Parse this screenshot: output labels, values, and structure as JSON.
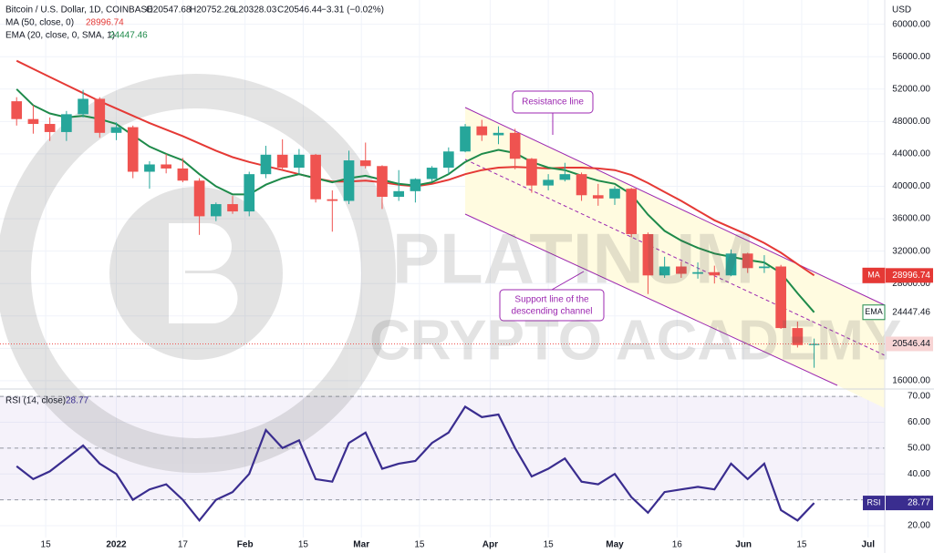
{
  "watermark": [
    "PLATINUM",
    "CRYPTO ACADEMY"
  ],
  "chart_data": [
    {
      "type": "candlestick",
      "title": "Bitcoin / U.S. Dollar, 1D, COINBASE",
      "ohlc_labels": [
        "O20547.68",
        "H20752.26",
        "L20328.03",
        "C20546.44"
      ],
      "change": "−3.31 (−0.02%)",
      "y_unit": "USD",
      "x": [
        "2021-12-08",
        "2021-12-12",
        "2021-12-16",
        "2021-12-20",
        "2021-12-24",
        "2021-12-28",
        "2022-01-01",
        "2022-01-05",
        "2022-01-09",
        "2022-01-13",
        "2022-01-17",
        "2022-01-21",
        "2022-01-25",
        "2022-01-29",
        "2022-02-02",
        "2022-02-06",
        "2022-02-10",
        "2022-02-14",
        "2022-02-18",
        "2022-02-22",
        "2022-02-26",
        "2022-03-02",
        "2022-03-06",
        "2022-03-10",
        "2022-03-14",
        "2022-03-18",
        "2022-03-22",
        "2022-03-26",
        "2022-03-30",
        "2022-04-03",
        "2022-04-07",
        "2022-04-11",
        "2022-04-15",
        "2022-04-19",
        "2022-04-23",
        "2022-04-27",
        "2022-05-01",
        "2022-05-05",
        "2022-05-09",
        "2022-05-13",
        "2022-05-17",
        "2022-05-21",
        "2022-05-25",
        "2022-05-29",
        "2022-06-02",
        "2022-06-06",
        "2022-06-10",
        "2022-06-14",
        "2022-06-18"
      ],
      "open": [
        50500,
        48300,
        47700,
        46700,
        48900,
        50800,
        46600,
        47300,
        41800,
        42700,
        42200,
        40700,
        36300,
        37800,
        36900,
        41500,
        43900,
        42300,
        43900,
        38400,
        38200,
        43200,
        42500,
        38700,
        39400,
        40900,
        42300,
        44300,
        47400,
        46300,
        46600,
        43400,
        40100,
        40800,
        41500,
        38900,
        38500,
        39700,
        34100,
        29000,
        30100,
        29200,
        29400,
        29000,
        31700,
        29900,
        30100,
        22500,
        20400
      ],
      "high": [
        51000,
        50000,
        48500,
        49300,
        51900,
        51000,
        47900,
        47500,
        43100,
        44000,
        43500,
        41000,
        38000,
        38800,
        41800,
        45000,
        45800,
        44600,
        44000,
        39500,
        44400,
        45400,
        42600,
        42000,
        41000,
        42500,
        44800,
        47700,
        48200,
        47400,
        47100,
        43500,
        41500,
        42900,
        41700,
        40300,
        40000,
        39800,
        34300,
        31300,
        30700,
        30600,
        30200,
        32200,
        31800,
        31500,
        30300,
        23300,
        21200
      ],
      "low": [
        47500,
        46500,
        45600,
        45600,
        48500,
        46000,
        45700,
        41000,
        39700,
        41600,
        40500,
        34000,
        35700,
        36600,
        36300,
        41000,
        42000,
        41500,
        38000,
        34400,
        37800,
        42200,
        37200,
        38200,
        38000,
        40600,
        41500,
        44200,
        45600,
        45200,
        42100,
        39200,
        39500,
        40600,
        38200,
        37600,
        37700,
        33700,
        26700,
        28700,
        28700,
        28600,
        28000,
        28900,
        29300,
        29300,
        22400,
        20100,
        17600
      ],
      "close": [
        48300,
        47700,
        46700,
        48900,
        50800,
        46600,
        47300,
        41800,
        42700,
        42200,
        40700,
        36300,
        37800,
        36900,
        41500,
        43900,
        42300,
        43900,
        38400,
        38200,
        43200,
        42500,
        38700,
        39400,
        40900,
        42300,
        44300,
        47400,
        46300,
        46600,
        43400,
        40100,
        40800,
        41500,
        38900,
        38500,
        39700,
        34100,
        29000,
        30100,
        29200,
        29400,
        29000,
        31700,
        29900,
        30100,
        22500,
        20400,
        20546.44
      ],
      "up_color": "#26a69a",
      "down_color": "#ef5350",
      "series": [
        {
          "name": "MA (50, close, 0)",
          "badge": "MA",
          "color": "#e53935",
          "values": [
            55500,
            54500,
            53500,
            52500,
            51500,
            50500,
            49600,
            48700,
            47800,
            47000,
            46200,
            45300,
            44400,
            43600,
            43000,
            42500,
            42000,
            41500,
            41000,
            40600,
            40600,
            40700,
            40500,
            40200,
            40000,
            40300,
            40800,
            41500,
            42000,
            42300,
            42400,
            42300,
            42200,
            42300,
            42300,
            42200,
            42000,
            41400,
            40400,
            39300,
            38200,
            37000,
            35800,
            34900,
            34000,
            33000,
            31800,
            30400,
            28996.74
          ]
        },
        {
          "name": "EMA (20, close, 0, SMA, 1)",
          "badge": "EMA",
          "color": "#1e8a4a",
          "values": [
            52000,
            50000,
            49000,
            48500,
            48700,
            48300,
            47700,
            46300,
            44900,
            44000,
            43200,
            41500,
            40000,
            39000,
            39000,
            40200,
            41000,
            41500,
            41000,
            40500,
            41000,
            41300,
            40800,
            40300,
            40100,
            40500,
            41500,
            43000,
            44000,
            44500,
            44100,
            43000,
            42300,
            42000,
            41300,
            40700,
            40300,
            39000,
            36500,
            34500,
            33300,
            32400,
            31700,
            31300,
            30900,
            30600,
            29300,
            26800,
            24447.46
          ]
        }
      ],
      "xlim": [
        "2021-12-04",
        "2022-07-05"
      ],
      "ylim": [
        15200,
        63000
      ],
      "yticks": [
        {
          "value": 16000,
          "label": "16000.00"
        },
        {
          "value": 20000,
          "label": "20000.00"
        },
        {
          "value": 24000,
          "label": "24000.00"
        },
        {
          "value": 28000,
          "label": "28000.00"
        },
        {
          "value": 32000,
          "label": "32000.00"
        },
        {
          "value": 36000,
          "label": "36000.00"
        },
        {
          "value": 40000,
          "label": "40000.00"
        },
        {
          "value": 44000,
          "label": "44000.00"
        },
        {
          "value": 48000,
          "label": "48000.00"
        },
        {
          "value": 52000,
          "label": "52000.00"
        },
        {
          "value": 56000,
          "label": "56000.00"
        },
        {
          "value": 60000,
          "label": "60000.00"
        }
      ],
      "grid": true,
      "annotations": [
        "Resistance line",
        "Support line of the",
        "descending channel"
      ]
    },
    {
      "type": "line",
      "title": "RSI (14, close)",
      "x": [
        "2021-12-08",
        "2021-12-12",
        "2021-12-16",
        "2021-12-20",
        "2021-12-24",
        "2021-12-28",
        "2022-01-01",
        "2022-01-05",
        "2022-01-09",
        "2022-01-13",
        "2022-01-17",
        "2022-01-21",
        "2022-01-25",
        "2022-01-29",
        "2022-02-02",
        "2022-02-06",
        "2022-02-10",
        "2022-02-14",
        "2022-02-18",
        "2022-02-22",
        "2022-02-26",
        "2022-03-02",
        "2022-03-06",
        "2022-03-10",
        "2022-03-14",
        "2022-03-18",
        "2022-03-22",
        "2022-03-26",
        "2022-03-30",
        "2022-04-03",
        "2022-04-07",
        "2022-04-11",
        "2022-04-15",
        "2022-04-19",
        "2022-04-23",
        "2022-04-27",
        "2022-05-01",
        "2022-05-05",
        "2022-05-09",
        "2022-05-13",
        "2022-05-17",
        "2022-05-21",
        "2022-05-25",
        "2022-05-29",
        "2022-06-02",
        "2022-06-06",
        "2022-06-10",
        "2022-06-14",
        "2022-06-18"
      ],
      "series": [
        {
          "name": "RSI",
          "color": "#3a2d8f",
          "values": [
            43,
            38,
            41,
            46,
            51,
            44,
            40,
            30,
            34,
            36,
            30,
            22,
            30,
            33,
            40,
            57,
            50,
            53,
            38,
            37,
            52,
            56,
            42,
            44,
            45,
            52,
            56,
            66,
            62,
            63,
            50,
            39,
            42,
            46,
            37,
            36,
            40,
            31,
            25,
            33,
            34,
            35,
            34,
            44,
            38,
            44,
            26,
            22,
            28.77
          ]
        }
      ],
      "xlim": [
        "2021-12-04",
        "2022-07-05"
      ],
      "ylim": [
        15.4,
        72.5
      ],
      "yticks": [
        {
          "value": 20,
          "label": "20.00"
        },
        {
          "value": 30,
          "label": "30.00"
        },
        {
          "value": 40,
          "label": "40.00"
        },
        {
          "value": 50,
          "label": "50.00"
        },
        {
          "value": 60,
          "label": "60.00"
        },
        {
          "value": 70,
          "label": "70.00"
        }
      ],
      "levels": [
        30,
        50,
        70
      ],
      "xticks": [
        {
          "value": "2021-12-15",
          "label": "15"
        },
        {
          "value": "2022-01-01",
          "label": "2022"
        },
        {
          "value": "2022-01-17",
          "label": "17"
        },
        {
          "value": "2022-02-01",
          "label": "Feb"
        },
        {
          "value": "2022-02-15",
          "label": "15"
        },
        {
          "value": "2022-03-01",
          "label": "Mar"
        },
        {
          "value": "2022-03-15",
          "label": "15"
        },
        {
          "value": "2022-04-01",
          "label": "Apr"
        },
        {
          "value": "2022-04-15",
          "label": "15"
        },
        {
          "value": "2022-05-01",
          "label": "May"
        },
        {
          "value": "2022-05-16",
          "label": "16"
        },
        {
          "value": "2022-06-01",
          "label": "Jun"
        },
        {
          "value": "2022-06-15",
          "label": "15"
        },
        {
          "value": "2022-07-01",
          "label": "Jul"
        }
      ]
    }
  ]
}
